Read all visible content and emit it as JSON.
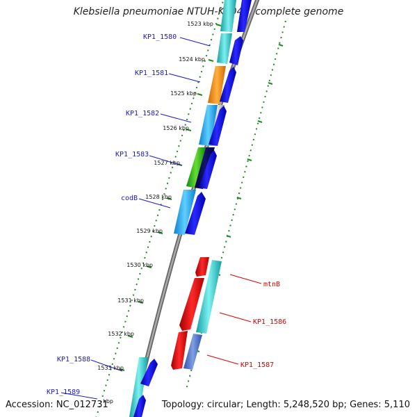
{
  "title": "Klebsiella pneumoniae NTUH-K2044, complete genome",
  "footer": {
    "accession": "Accession: NC_012731",
    "topology": "Topology: circular; Length: 5,248,520 bp; Genes: 5,110"
  },
  "colors": {
    "backbone": "#888888",
    "dots": "#1c8a1c",
    "forward_label": "#1a1acc",
    "reverse_label": "#dd0000"
  },
  "ticks": [
    {
      "label": "1523 kbp"
    },
    {
      "label": "1524 kbp"
    },
    {
      "label": "1525 kbp"
    },
    {
      "label": "1526 kbp"
    },
    {
      "label": "1527 kbp"
    },
    {
      "label": "1528 kbp"
    },
    {
      "label": "1529 kbp"
    },
    {
      "label": "1530 kbp"
    },
    {
      "label": "1531 kbp"
    },
    {
      "label": "1532 kbp"
    },
    {
      "label": "1533 kbp"
    },
    {
      "label": "kbp"
    }
  ],
  "gene_labels": [
    {
      "text": "KP1_1580",
      "strand": "forward"
    },
    {
      "text": "KP1_1581",
      "strand": "forward"
    },
    {
      "text": "KP1_1582",
      "strand": "forward"
    },
    {
      "text": "KP1_1583",
      "strand": "forward"
    },
    {
      "text": "codB",
      "strand": "forward"
    },
    {
      "text": "KP1_1588",
      "strand": "forward"
    },
    {
      "text": "KP1_1589",
      "strand": "forward"
    },
    {
      "text": "mtnB",
      "strand": "reverse"
    },
    {
      "text": "KP1_1586",
      "strand": "reverse"
    },
    {
      "text": "KP1_1587",
      "strand": "reverse"
    }
  ]
}
